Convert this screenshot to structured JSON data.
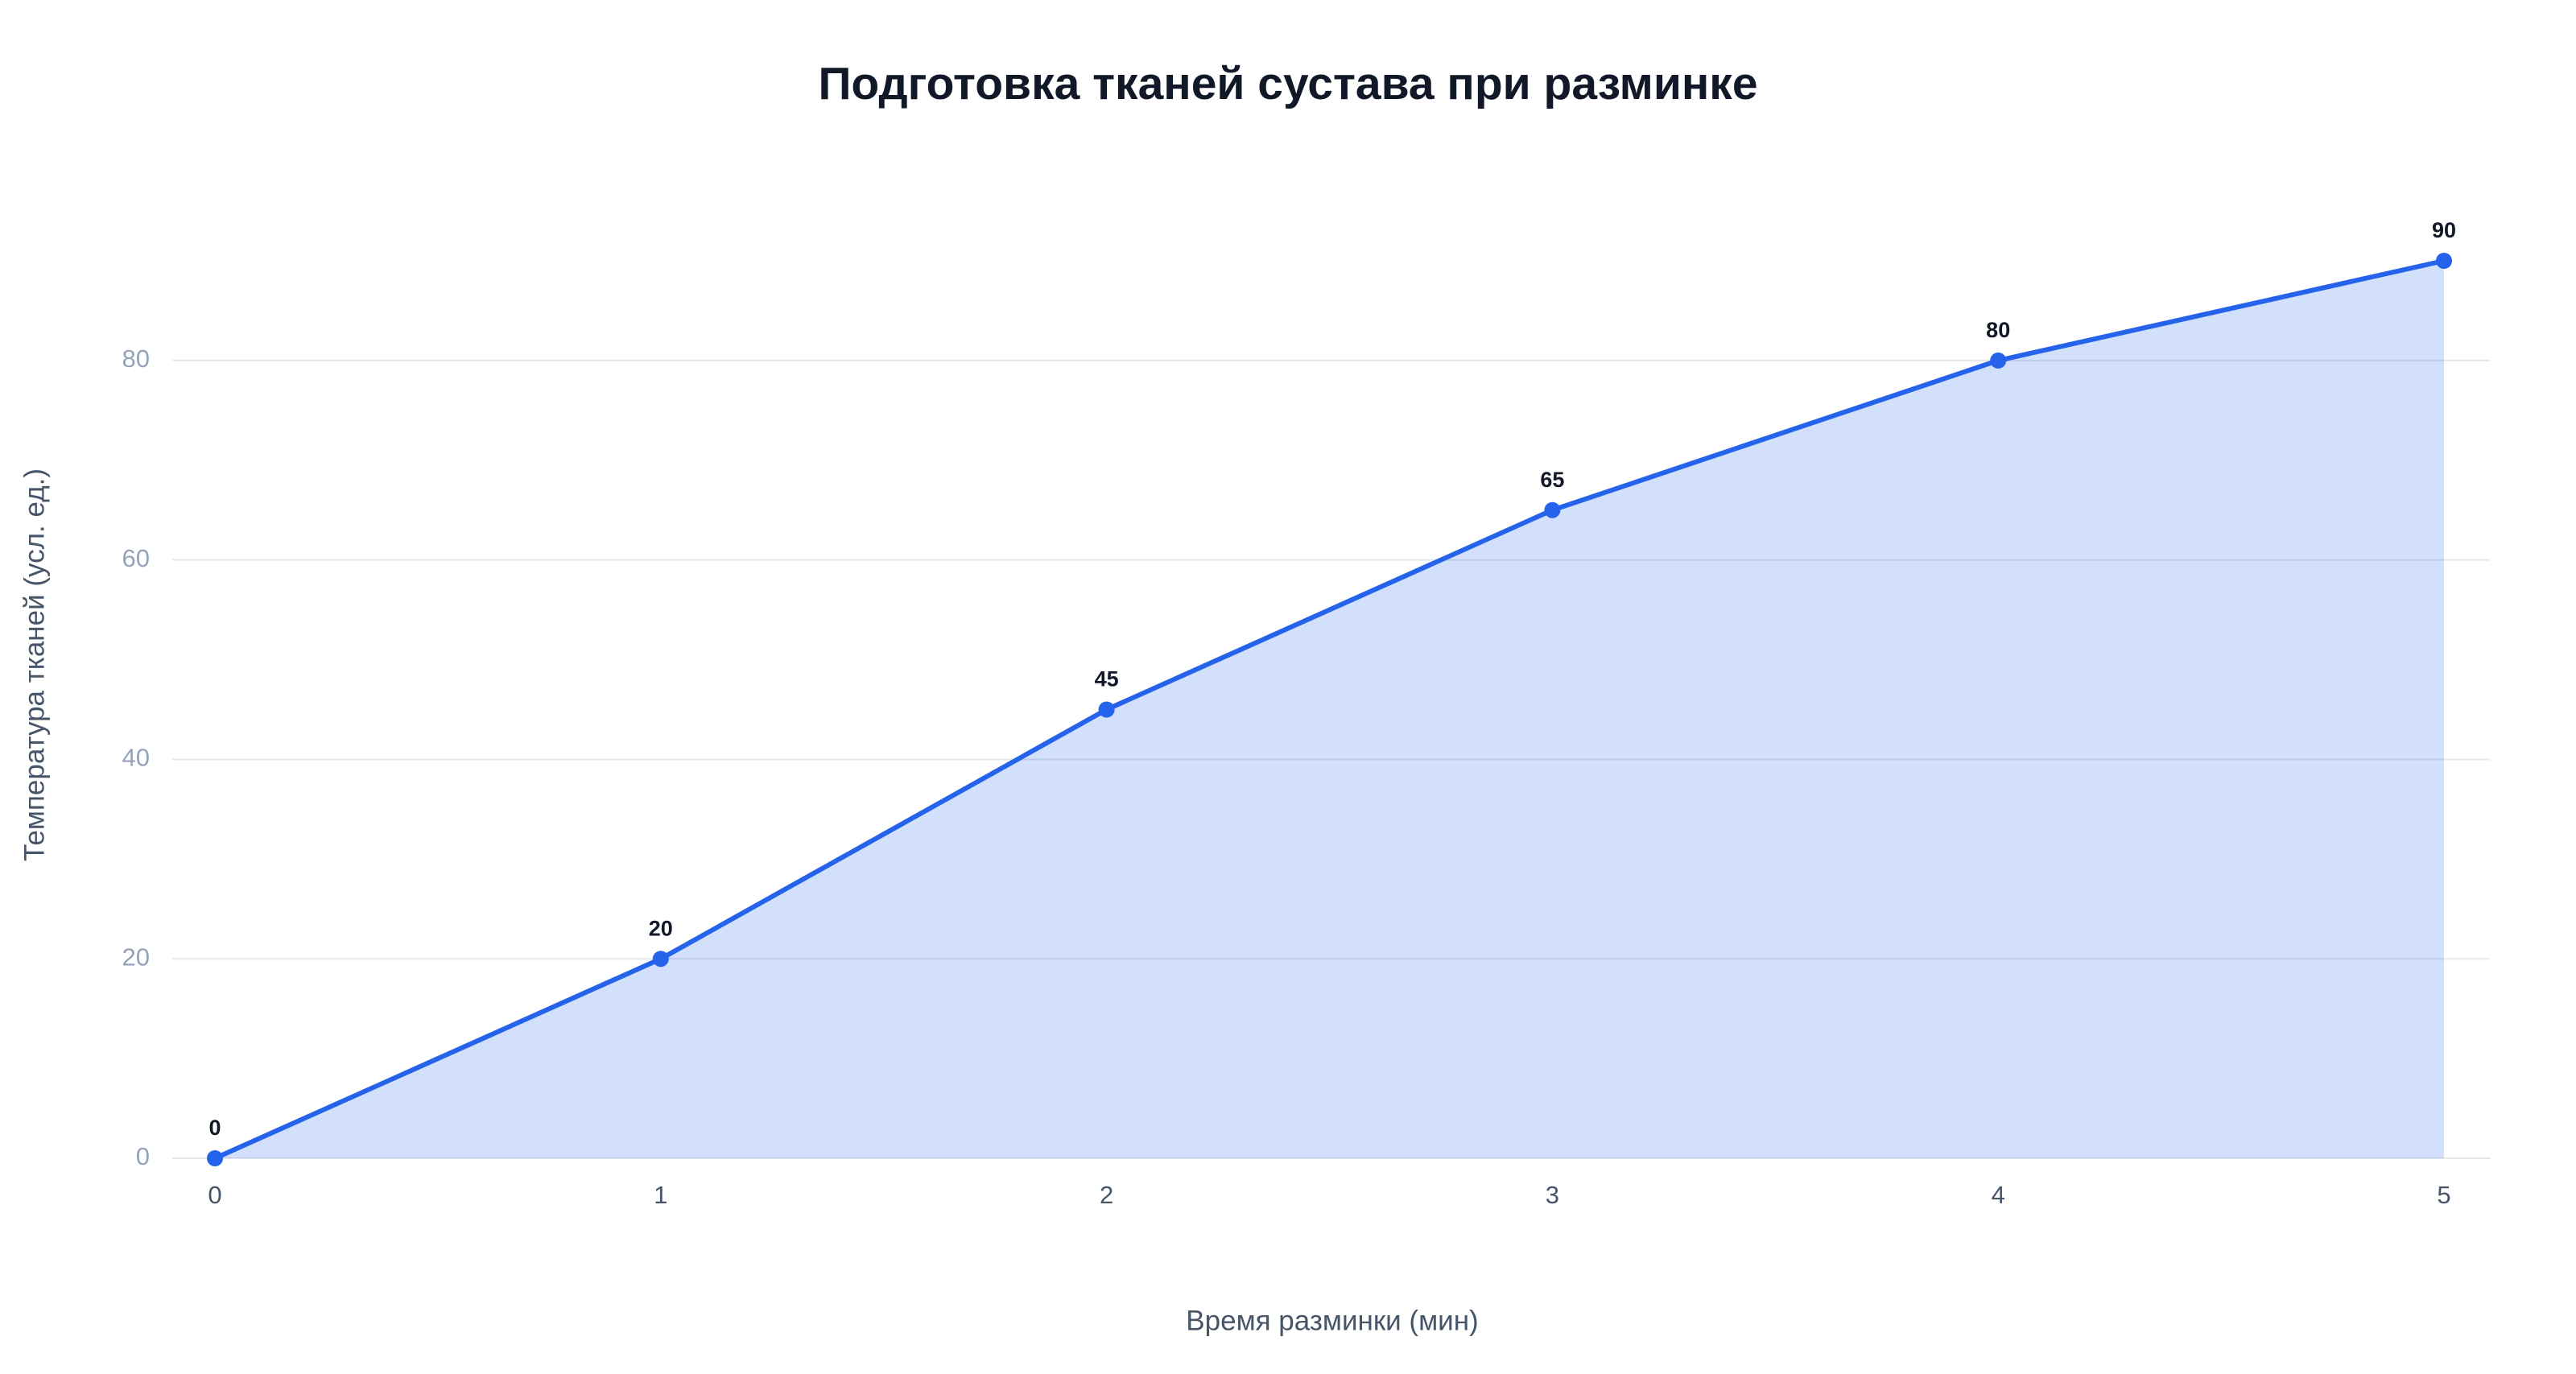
{
  "chart_data": {
    "type": "area",
    "title": "Подготовка тканей сустава при разминке",
    "x_label": "Время разминки (мин)",
    "y_label": "Температура тканей (усл. ед.)",
    "x": [
      0,
      1,
      2,
      3,
      4,
      5
    ],
    "values": [
      0,
      20,
      45,
      65,
      80,
      90
    ],
    "color": "#2563eb",
    "xlim": [
      0,
      5
    ],
    "xticks": [
      0,
      1,
      2,
      3,
      4,
      5
    ],
    "ylim": [
      0,
      90
    ],
    "yticks": [
      0,
      20,
      40,
      60,
      80
    ],
    "grid": true
  }
}
